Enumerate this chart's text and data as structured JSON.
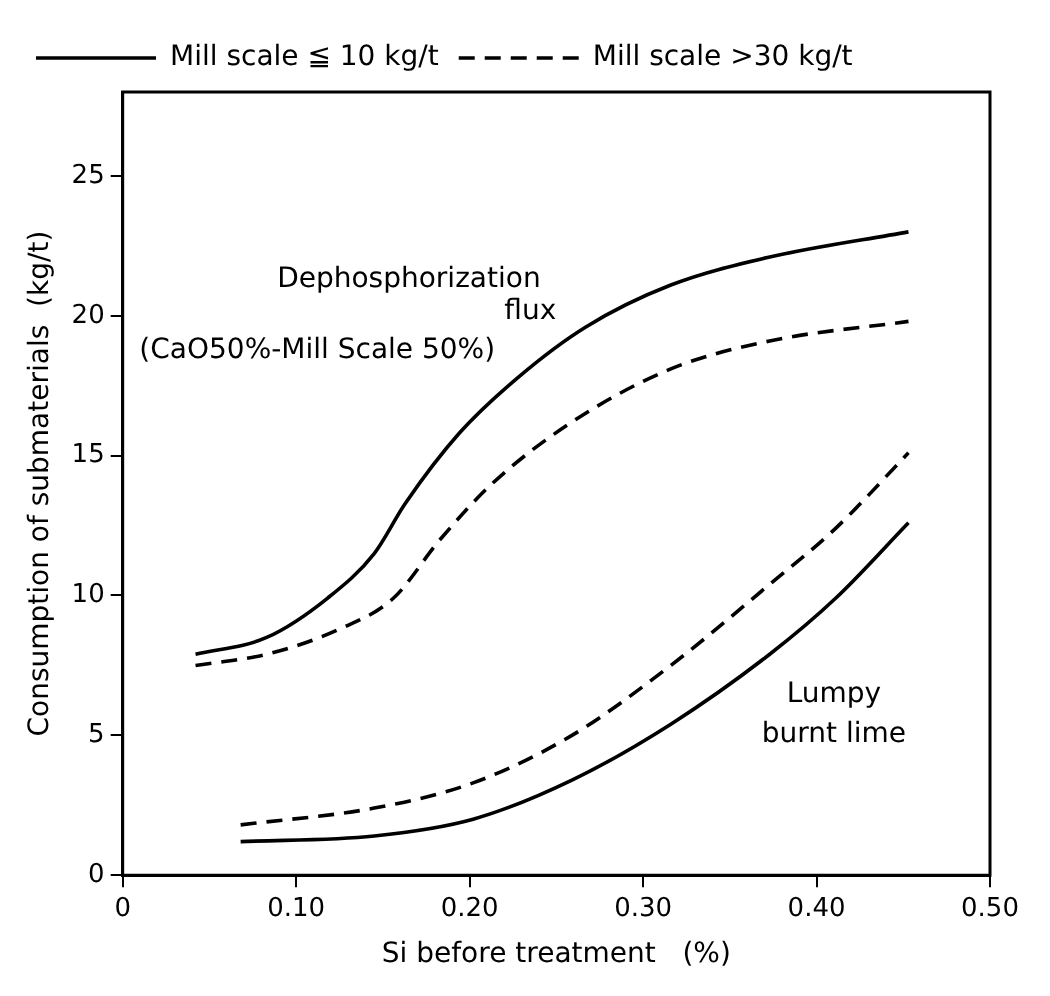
{
  "chart_data": {
    "type": "line",
    "xlabel": "Si before treatment   (%)",
    "ylabel": "Consumption of submaterials  (kg/t)",
    "xlim": [
      0,
      0.5
    ],
    "xticks": [
      0,
      {
        "value": 0.1,
        "label": "0.10"
      },
      {
        "value": 0.2,
        "label": "0.20"
      },
      {
        "value": 0.3,
        "label": "0.30"
      },
      {
        "value": 0.4,
        "label": "0.40"
      },
      {
        "value": 0.5,
        "label": "0.50"
      }
    ],
    "ylim": [
      0,
      28
    ],
    "yticks": [
      0,
      5,
      10,
      15,
      20,
      25
    ],
    "grid": false,
    "legend": "top left",
    "marker": "none",
    "series": [
      {
        "name": "Mill scale ≦ 10 kg/t",
        "color": "#000000",
        "line_style": "solid",
        "x": [
          0.042,
          0.083,
          0.118,
          0.145,
          0.163,
          0.194,
          0.228,
          0.267,
          0.316,
          0.373,
          0.453
        ],
        "values": [
          7.9,
          8.5,
          9.9,
          11.5,
          13.3,
          15.8,
          17.8,
          19.6,
          21.1,
          22.1,
          23.0
        ]
      },
      {
        "name": "Mill scale >30 kg/t",
        "color": "#000000",
        "line_style": "dashed",
        "x": [
          0.042,
          0.083,
          0.125,
          0.156,
          0.183,
          0.213,
          0.259,
          0.316,
          0.373,
          0.453
        ],
        "values": [
          7.5,
          7.9,
          8.8,
          9.9,
          12.0,
          14.0,
          16.2,
          18.1,
          19.1,
          19.8
        ]
      },
      {
        "color": "#000000",
        "line_style": "solid",
        "x": [
          0.068,
          0.145,
          0.202,
          0.259,
          0.316,
          0.373,
          0.411,
          0.453
        ],
        "values": [
          1.2,
          1.4,
          2.0,
          3.4,
          5.4,
          7.9,
          9.9,
          12.6
        ]
      },
      {
        "color": "#000000",
        "line_style": "dashed",
        "x": [
          0.068,
          0.145,
          0.202,
          0.259,
          0.316,
          0.373,
          0.411,
          0.453
        ],
        "values": [
          1.8,
          2.4,
          3.3,
          5.0,
          7.5,
          10.4,
          12.4,
          15.1
        ]
      }
    ],
    "annotations": [
      "Dephosphorization",
      "flux",
      "(CaO50%-Mill Scale 50%)",
      "Lumpy",
      "burnt lime"
    ]
  }
}
